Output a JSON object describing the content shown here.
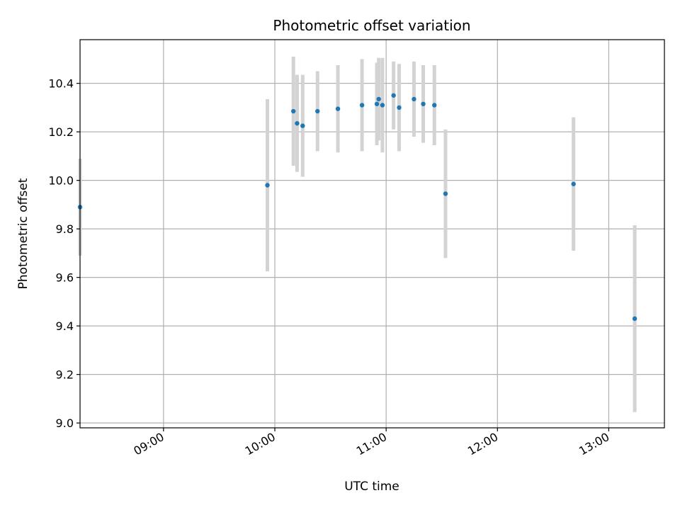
{
  "chart_data": {
    "type": "scatter",
    "title": "Photometric offset variation",
    "xlabel": "UTC time",
    "ylabel": "Photometric offset",
    "x_axis_type": "time",
    "xlim": [
      "08:15",
      "13:30"
    ],
    "ylim": [
      8.98,
      10.58
    ],
    "x_ticks": [
      "09:00",
      "10:00",
      "11:00",
      "12:00",
      "13:00"
    ],
    "y_ticks": [
      "9.0",
      "9.2",
      "9.4",
      "9.6",
      "9.8",
      "10.0",
      "10.2",
      "10.4"
    ],
    "grid": true,
    "legend": "none",
    "colors": {
      "point": "#1f77b4",
      "errorbar": "#d3d3d3",
      "grid": "#b0b0b0"
    },
    "points": [
      {
        "x": "08:15",
        "y": 9.89,
        "err": 0.2
      },
      {
        "x": "09:56",
        "y": 9.98,
        "err": 0.355
      },
      {
        "x": "10:10",
        "y": 10.285,
        "err": 0.225
      },
      {
        "x": "10:12",
        "y": 10.235,
        "err": 0.2
      },
      {
        "x": "10:15",
        "y": 10.225,
        "err": 0.21
      },
      {
        "x": "10:23",
        "y": 10.285,
        "err": 0.165
      },
      {
        "x": "10:34",
        "y": 10.295,
        "err": 0.18
      },
      {
        "x": "10:47",
        "y": 10.31,
        "err": 0.19
      },
      {
        "x": "10:55",
        "y": 10.315,
        "err": 0.17
      },
      {
        "x": "10:56",
        "y": 10.335,
        "err": 0.17
      },
      {
        "x": "10:58",
        "y": 10.31,
        "err": 0.195
      },
      {
        "x": "11:04",
        "y": 10.35,
        "err": 0.14
      },
      {
        "x": "11:07",
        "y": 10.3,
        "err": 0.18
      },
      {
        "x": "11:15",
        "y": 10.335,
        "err": 0.155
      },
      {
        "x": "11:20",
        "y": 10.315,
        "err": 0.16
      },
      {
        "x": "11:26",
        "y": 10.31,
        "err": 0.165
      },
      {
        "x": "11:32",
        "y": 9.945,
        "err": 0.265
      },
      {
        "x": "12:41",
        "y": 9.985,
        "err": 0.275
      },
      {
        "x": "13:14",
        "y": 9.43,
        "err": 0.385
      }
    ]
  }
}
